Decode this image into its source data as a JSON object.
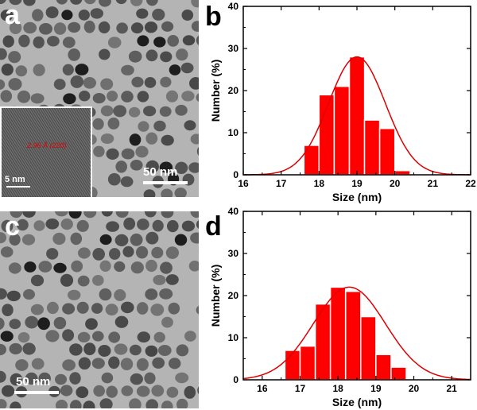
{
  "panels": {
    "a": {
      "letter": "a",
      "scale_bar": "50 nm",
      "inset": {
        "scale_bar": "5 nm",
        "lattice_label": "2.96 Å (220)"
      }
    },
    "b": {
      "letter": "b"
    },
    "c": {
      "letter": "c",
      "scale_bar": "50 nm"
    },
    "d": {
      "letter": "d"
    }
  },
  "colors": {
    "bar_fill": "#ff0000",
    "bar_edge": "#ffffff",
    "fit_line": "#dd0000",
    "tem_background": "#b4b4b4",
    "particle": "#5a5a5a"
  },
  "chart_data": [
    {
      "type": "bar",
      "panel": "b",
      "xlabel": "Size (nm)",
      "ylabel": "Number (%)",
      "xlim": [
        16,
        22
      ],
      "ylim": [
        0,
        40
      ],
      "xticks": [
        16,
        17,
        18,
        19,
        20,
        21,
        22
      ],
      "yticks": [
        0,
        10,
        20,
        30,
        40
      ],
      "bin_width": 0.4,
      "bin_centers": [
        17.8,
        18.2,
        18.6,
        19.0,
        19.4,
        19.8,
        20.2,
        20.6
      ],
      "values": [
        7,
        19,
        21,
        28,
        13,
        11,
        1,
        0
      ],
      "gaussian_fit": {
        "mean": 19.0,
        "sigma": 0.75,
        "peak": 28
      }
    },
    {
      "type": "bar",
      "panel": "d",
      "xlabel": "Size (nm)",
      "ylabel": "Number (%)",
      "xlim": [
        15.5,
        21.5
      ],
      "ylim": [
        0,
        40
      ],
      "xticks": [
        16,
        17,
        18,
        19,
        20,
        21
      ],
      "yticks": [
        0,
        10,
        20,
        30,
        40
      ],
      "bin_width": 0.4,
      "bin_centers": [
        16.8,
        17.2,
        17.6,
        18.0,
        18.4,
        18.8,
        19.2,
        19.6,
        20.0
      ],
      "values": [
        7,
        8,
        18,
        22,
        21,
        15,
        6,
        3,
        0
      ],
      "gaussian_fit": {
        "mean": 18.3,
        "sigma": 0.95,
        "peak": 22
      }
    }
  ]
}
